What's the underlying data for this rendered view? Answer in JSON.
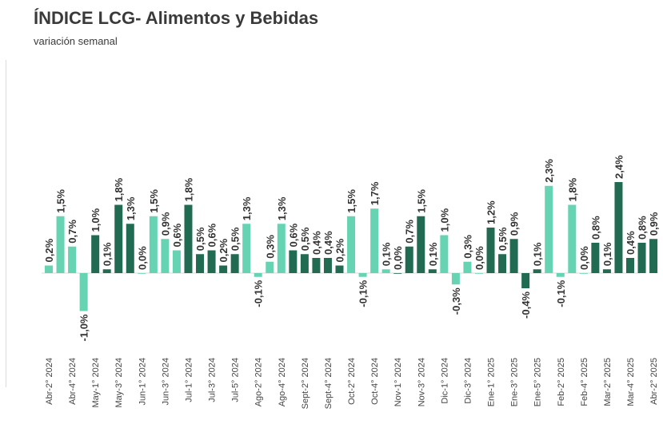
{
  "chart_data": {
    "type": "bar",
    "title": "ÍNDICE LCG- Alimentos y Bebidas",
    "subtitle": "variación semanal",
    "colors": {
      "light": "#66D4B2",
      "dark": "#226B53"
    },
    "categories": [
      "Abr-2° 2024",
      "",
      "Abr-4° 2024",
      "",
      "May-1° 2024",
      "",
      "May-3° 2024",
      "",
      "Jun-1° 2024",
      "",
      "Jun-3° 2024",
      "",
      "Jul-1° 2024",
      "",
      "Jul-3° 2024",
      "",
      "Jul-5° 2024",
      "",
      "Ago-2° 2024",
      "",
      "Ago-4° 2024",
      "",
      "Sept-2° 2024",
      "",
      "Sept-4° 2024",
      "",
      "Oct-2° 2024",
      "",
      "Oct-4° 2024",
      "",
      "Nov-1° 2024",
      "",
      "Nov-3° 2024",
      "",
      "Dic-1° 2024",
      "",
      "Dic-3° 2024",
      "",
      "Ene-1° 2025",
      "",
      "Ene-3° 2025",
      "",
      "Ene-5° 2025",
      "",
      "Feb-2° 2025",
      "",
      "Feb-4° 2025",
      "",
      "Mar-2° 2025",
      "",
      "Mar-4° 2025",
      "",
      "Abr-2° 2025"
    ],
    "values": [
      0.2,
      1.5,
      0.7,
      -1.0,
      1.0,
      0.1,
      1.8,
      1.3,
      0.0,
      1.5,
      0.9,
      0.6,
      1.8,
      0.5,
      0.6,
      0.2,
      0.5,
      1.3,
      -0.1,
      0.3,
      1.3,
      0.6,
      0.5,
      0.4,
      0.4,
      0.2,
      1.5,
      -0.1,
      1.7,
      0.1,
      0.0,
      0.7,
      1.5,
      0.1,
      1.0,
      -0.3,
      0.3,
      0.0,
      1.2,
      0.5,
      0.9,
      -0.4,
      0.1,
      2.3,
      -0.1,
      1.8,
      0.0,
      0.8,
      0.1,
      2.4,
      0.4,
      0.8,
      0.9
    ],
    "labels": [
      "0,2%",
      "1,5%",
      "0,7%",
      "-1,0%",
      "1,0%",
      "0,1%",
      "1,8%",
      "1,3%",
      "0,0%",
      "1,5%",
      "0,9%",
      "0,6%",
      "1,8%",
      "0,5%",
      "0,6%",
      "0,2%",
      "0,5%",
      "1,3%",
      "-0,1%",
      "0,3%",
      "1,3%",
      "0,6%",
      "0,5%",
      "0,4%",
      "0,4%",
      "0,2%",
      "1,5%",
      "-0,1%",
      "1,7%",
      "0,1%",
      "0,0%",
      "0,7%",
      "1,5%",
      "0,1%",
      "1,0%",
      "-0,3%",
      "0,3%",
      "0,0%",
      "1,2%",
      "0,5%",
      "0,9%",
      "-0,4%",
      "0,1%",
      "2,3%",
      "-0,1%",
      "1,8%",
      "0,0%",
      "0,8%",
      "0,1%",
      "2,4%",
      "0,4%",
      "0,8%",
      "0,9%"
    ],
    "bar_colors": [
      "light",
      "light",
      "light",
      "light",
      "dark",
      "dark",
      "dark",
      "dark",
      "light",
      "light",
      "light",
      "light",
      "dark",
      "dark",
      "dark",
      "dark",
      "dark",
      "light",
      "light",
      "light",
      "light",
      "dark",
      "dark",
      "dark",
      "dark",
      "dark",
      "light",
      "light",
      "light",
      "light",
      "dark",
      "dark",
      "dark",
      "dark",
      "light",
      "light",
      "light",
      "light",
      "dark",
      "dark",
      "dark",
      "dark",
      "dark",
      "light",
      "light",
      "light",
      "light",
      "dark",
      "dark",
      "dark",
      "dark",
      "dark",
      "dark"
    ],
    "ylim": [
      -1.5,
      2.6
    ]
  }
}
